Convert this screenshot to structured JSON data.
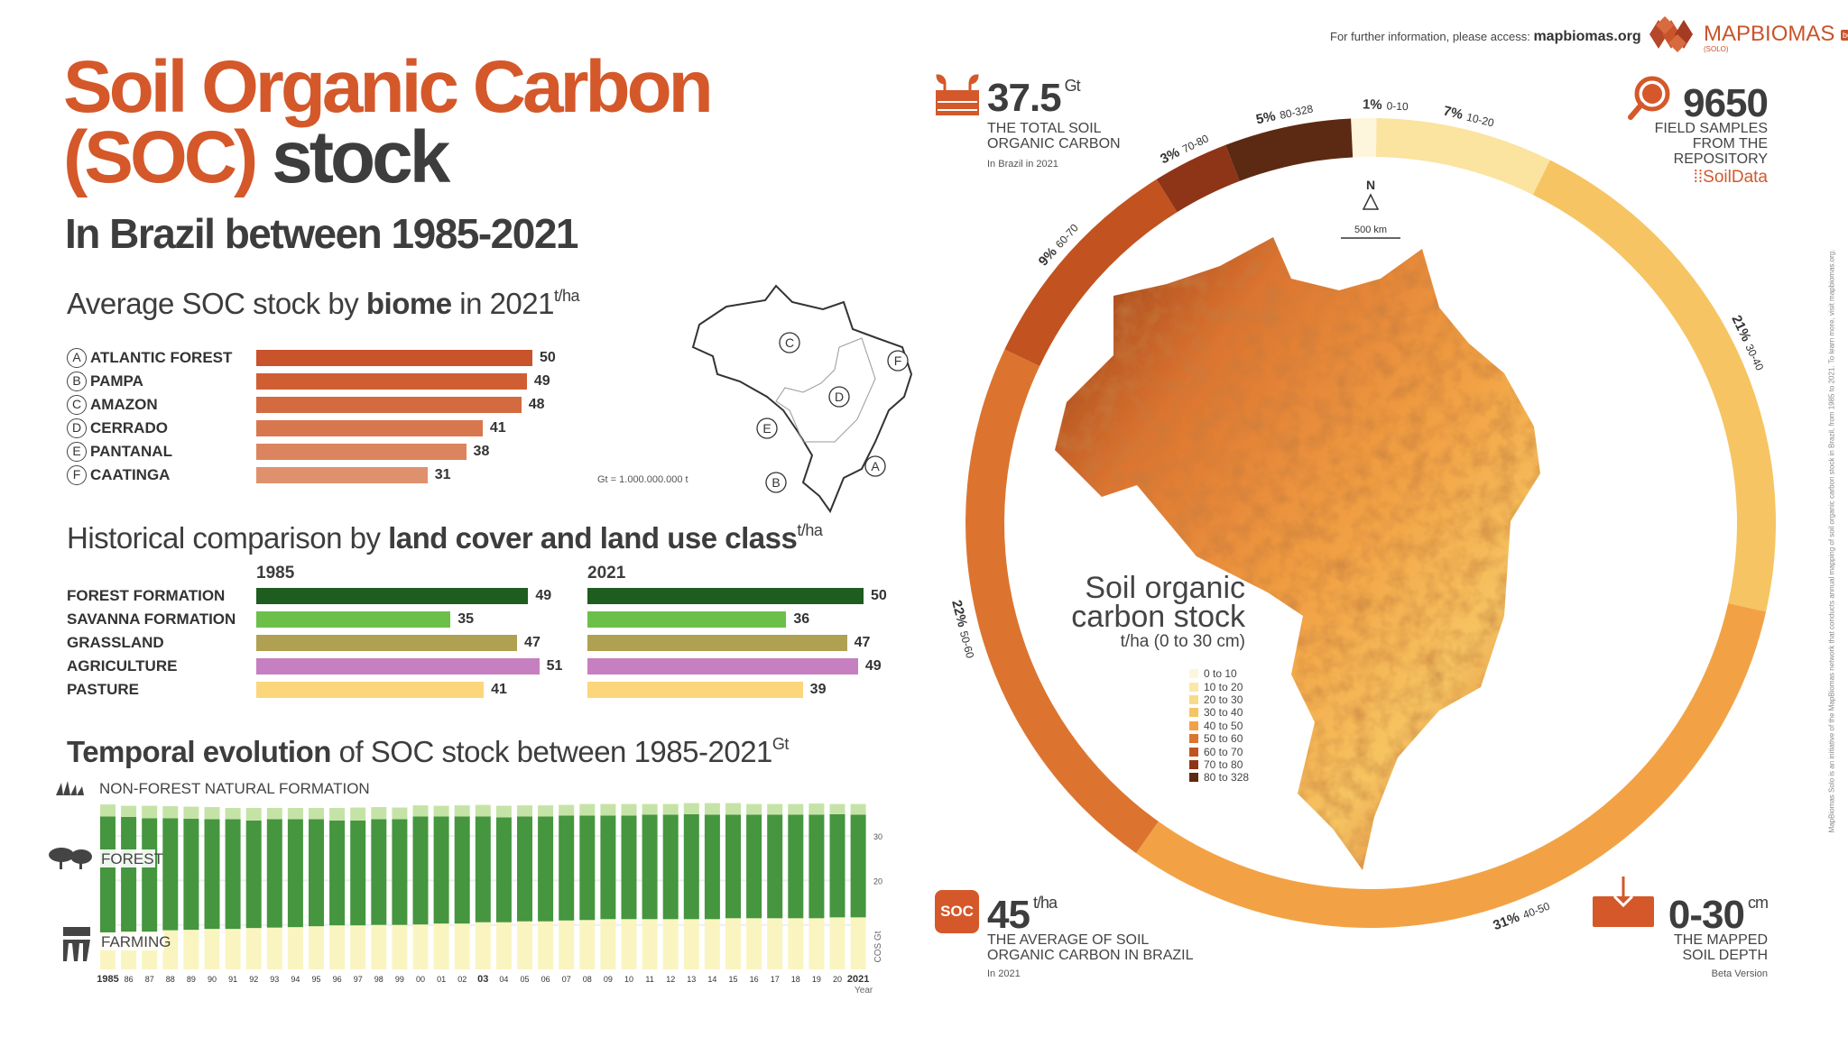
{
  "title": {
    "line1": "Soil Organic Carbon",
    "line2_accent": "(SOC)",
    "line2_rest": " stock",
    "subtitle": "In Brazil between 1985-2021"
  },
  "biome_section": {
    "heading_pre": "Average SOC stock by ",
    "heading_bold": "biome",
    "heading_post": " in 2021",
    "unit": "t/ha",
    "items": [
      {
        "letter": "A",
        "label": "ATLANTIC FOREST",
        "value": 50,
        "color": "#c9532a"
      },
      {
        "letter": "B",
        "label": "PAMPA",
        "value": 49,
        "color": "#cf5e33"
      },
      {
        "letter": "C",
        "label": "AMAZON",
        "value": 48,
        "color": "#d46a3f"
      },
      {
        "letter": "D",
        "label": "CERRADO",
        "value": 41,
        "color": "#d8774d"
      },
      {
        "letter": "E",
        "label": "PANTANAL",
        "value": 38,
        "color": "#dc845d"
      },
      {
        "letter": "F",
        "label": "CAATINGA",
        "value": 31,
        "color": "#df916d"
      }
    ],
    "map_letters": [
      "C",
      "F",
      "D",
      "E",
      "B",
      "A"
    ],
    "gt_note": "Gt = 1.000.000.000 t"
  },
  "landuse_section": {
    "heading_pre": "Historical comparison by ",
    "heading_bold": "land cover and land use class",
    "unit": "t/ha",
    "year1": "1985",
    "year2": "2021",
    "items": [
      {
        "label": "FOREST FORMATION",
        "v1985": 49,
        "v2021": 50,
        "color": "#1f5c20"
      },
      {
        "label": "SAVANNA FORMATION",
        "v1985": 35,
        "v2021": 36,
        "color": "#6cc04a"
      },
      {
        "label": "GRASSLAND",
        "v1985": 47,
        "v2021": 47,
        "color": "#b0a152"
      },
      {
        "label": "AGRICULTURE",
        "v1985": 51,
        "v2021": 49,
        "color": "#c67fc0"
      },
      {
        "label": "PASTURE",
        "v1985": 41,
        "v2021": 39,
        "color": "#fbd67a"
      }
    ]
  },
  "temporal_section": {
    "heading_bold": "Temporal evolution",
    "heading_rest": " of SOC stock between 1985-2021",
    "unit": "Gt"
  },
  "chart_data": {
    "type": "bar",
    "stacked": true,
    "title": "Temporal evolution of SOC stock between 1985-2021",
    "xlabel": "Year",
    "ylabel": "COS Gt",
    "yticks": [
      20,
      30
    ],
    "ylim": [
      0,
      40
    ],
    "categories": [
      "1985",
      "86",
      "87",
      "88",
      "89",
      "90",
      "91",
      "92",
      "93",
      "94",
      "95",
      "96",
      "97",
      "98",
      "99",
      "00",
      "01",
      "02",
      "03",
      "04",
      "05",
      "06",
      "07",
      "08",
      "09",
      "10",
      "11",
      "12",
      "13",
      "14",
      "15",
      "16",
      "17",
      "18",
      "19",
      "20",
      "2021"
    ],
    "series": [
      {
        "name": "FARMING",
        "color": "#faf5c0",
        "values": [
          8.3,
          8.5,
          8.5,
          8.8,
          8.9,
          9.1,
          9.1,
          9.3,
          9.4,
          9.5,
          9.7,
          9.9,
          9.9,
          10.0,
          10.0,
          10.1,
          10.3,
          10.3,
          10.6,
          10.6,
          10.8,
          10.8,
          11.0,
          11.1,
          11.3,
          11.3,
          11.3,
          11.3,
          11.3,
          11.3,
          11.5,
          11.5,
          11.5,
          11.5,
          11.5,
          11.7,
          11.7
        ]
      },
      {
        "name": "FOREST",
        "color": "#45963f",
        "values": [
          26.1,
          25.8,
          25.5,
          25.2,
          25.0,
          24.7,
          24.7,
          24.2,
          24.4,
          24.3,
          24.1,
          23.6,
          23.6,
          23.8,
          23.8,
          24.3,
          24.1,
          24.1,
          23.8,
          23.6,
          23.6,
          23.6,
          23.6,
          23.5,
          23.3,
          23.3,
          23.5,
          23.5,
          23.6,
          23.5,
          23.3,
          23.3,
          23.3,
          23.3,
          23.3,
          23.2,
          23.1
        ]
      },
      {
        "name": "NON-FOREST NATURAL FORMATION",
        "color": "#c5e3a6",
        "values": [
          2.7,
          2.5,
          2.8,
          2.7,
          2.7,
          2.7,
          2.5,
          2.8,
          2.5,
          2.5,
          2.5,
          2.8,
          2.9,
          2.7,
          2.6,
          2.5,
          2.4,
          2.5,
          2.6,
          2.6,
          2.5,
          2.5,
          2.4,
          2.6,
          2.6,
          2.6,
          2.4,
          2.4,
          2.5,
          2.6,
          2.6,
          2.4,
          2.4,
          2.4,
          2.5,
          2.3,
          2.4
        ]
      }
    ]
  },
  "header": {
    "info_text": "For further information, please access:",
    "info_link": "mapbiomas.org",
    "logo_map": "MAP",
    "logo_biomas": "BIOMAS",
    "logo_sub": "(SOLO)",
    "logo_badge": "beta"
  },
  "stats": {
    "total": {
      "value": "37.5",
      "unit": "Gt",
      "line1": "THE TOTAL SOIL",
      "line2": "ORGANIC CARBON",
      "note": "In Brazil in 2021"
    },
    "samples": {
      "value": "9650",
      "line1": "FIELD SAMPLES",
      "line2": "FROM THE",
      "line3": "REPOSITORY",
      "source": "SoilData"
    },
    "average": {
      "icon_text": "SOC",
      "value": "45",
      "unit": "t/ha",
      "line1": "THE AVERAGE OF SOIL",
      "line2": "ORGANIC CARBON IN BRAZIL",
      "note": "In 2021"
    },
    "depth": {
      "value": "0-30",
      "unit": "cm",
      "line1": "THE MAPPED",
      "line2": "SOIL DEPTH",
      "note": "Beta Version"
    }
  },
  "ring": [
    {
      "pct": 1,
      "label": "1%",
      "range": "0-10",
      "color": "#fdf5dc"
    },
    {
      "pct": 7,
      "label": "7%",
      "range": "10-20",
      "color": "#fbe3a0"
    },
    {
      "pct": 21,
      "label": "21%",
      "range": "30-40",
      "color": "#f6c462"
    },
    {
      "pct": 31,
      "label": "31%",
      "range": "40-50",
      "color": "#f2a245"
    },
    {
      "pct": 22,
      "label": "22%",
      "range": "50-60",
      "color": "#dc7430"
    },
    {
      "pct": 9,
      "label": "9%",
      "range": "60-70",
      "color": "#c2521f"
    },
    {
      "pct": 3,
      "label": "3%",
      "range": "70-80",
      "color": "#8e3518"
    },
    {
      "pct": 5,
      "label": "5%",
      "range": "80-328",
      "color": "#5c2a12"
    }
  ],
  "map": {
    "north": "N",
    "scale": "500 km",
    "legend_title1": "Soil organic",
    "legend_title2": "carbon stock",
    "legend_unit": "t/ha  (0 to 30 cm)",
    "legend": [
      {
        "label": "0 to 10",
        "color": "#fdf5dc"
      },
      {
        "label": "10 to 20",
        "color": "#fbe7a8"
      },
      {
        "label": "20 to 30",
        "color": "#f9da8a"
      },
      {
        "label": "30 to 40",
        "color": "#f6c462"
      },
      {
        "label": "40 to 50",
        "color": "#f2a245"
      },
      {
        "label": "50 to 60",
        "color": "#dc7430"
      },
      {
        "label": "60 to 70",
        "color": "#c2521f"
      },
      {
        "label": "70 to 80",
        "color": "#8e3518"
      },
      {
        "label": "80 to 328",
        "color": "#5c2a12"
      }
    ]
  },
  "side_note": "MapBiomas Solo is an initiative of the MapBiomas network that conducts annual mapping of soil organic carbon stock in Brazil, from 1985 to 2021. To learn more, visit mapbiomas.org."
}
